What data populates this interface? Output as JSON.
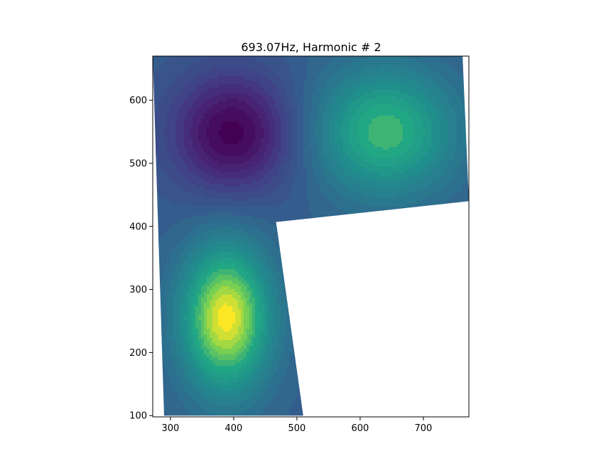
{
  "chart_data": {
    "type": "heatmap",
    "title": "693.07Hz, Harmonic # 2",
    "xlabel": "",
    "ylabel": "",
    "xlim": [
      272,
      772
    ],
    "ylim": [
      98,
      670
    ],
    "xticks": [
      300,
      400,
      500,
      600,
      700
    ],
    "yticks": [
      100,
      200,
      300,
      400,
      500,
      600
    ],
    "xtick_labels": [
      "300",
      "400",
      "500",
      "600",
      "700"
    ],
    "ytick_labels": [
      "100",
      "200",
      "300",
      "400",
      "500",
      "600"
    ],
    "grid": false,
    "colormap": "viridis",
    "domain_polygon": [
      [
        272,
        670
      ],
      [
        762,
        670
      ],
      [
        772,
        440
      ],
      [
        467,
        407
      ],
      [
        510,
        100
      ],
      [
        290,
        100
      ]
    ],
    "field": {
      "baseline": 0.38,
      "extrema": [
        {
          "x": 398,
          "y": 548,
          "amplitude": -0.38,
          "sigma_x": 95,
          "sigma_y": 95,
          "kind": "minimum"
        },
        {
          "x": 640,
          "y": 550,
          "amplitude": 0.42,
          "sigma_x": 110,
          "sigma_y": 100,
          "kind": "maximum"
        },
        {
          "x": 388,
          "y": 255,
          "amplitude": 0.62,
          "sigma_x": 70,
          "sigma_y": 115,
          "kind": "maximum"
        }
      ]
    }
  }
}
